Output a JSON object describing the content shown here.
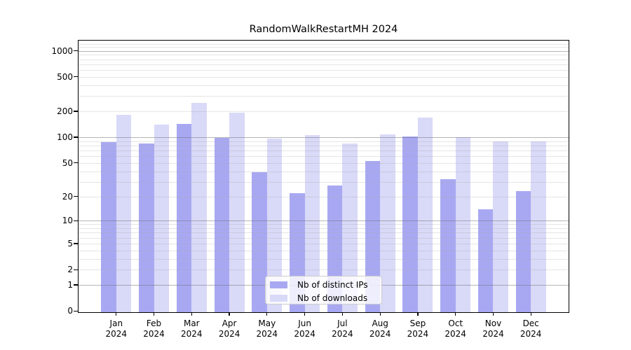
{
  "title": "RandomWalkRestartMH 2024",
  "chart_data": {
    "type": "bar",
    "title": "RandomWalkRestartMH 2024",
    "categories": [
      "Jan",
      "Feb",
      "Mar",
      "Apr",
      "May",
      "Jun",
      "Jul",
      "Aug",
      "Sep",
      "Oct",
      "Nov",
      "Dec"
    ],
    "year_label": "2024",
    "series": [
      {
        "name": "Nb of distinct IPs",
        "color": "#a8a8f2",
        "values": [
          88,
          84,
          142,
          98,
          39,
          22,
          27,
          53,
          102,
          32,
          14,
          23
        ]
      },
      {
        "name": "Nb of downloads",
        "color": "#d9d9f8",
        "values": [
          182,
          141,
          250,
          194,
          97,
          106,
          85,
          108,
          169,
          100,
          90,
          89
        ]
      }
    ],
    "yscale": "log1p",
    "yticks": [
      0,
      1,
      2,
      5,
      10,
      20,
      50,
      100,
      200,
      500,
      1000
    ],
    "ylim": [
      0,
      1350
    ],
    "xlabel": "",
    "ylabel": "",
    "grid": "on",
    "legend_position": "lower center"
  }
}
